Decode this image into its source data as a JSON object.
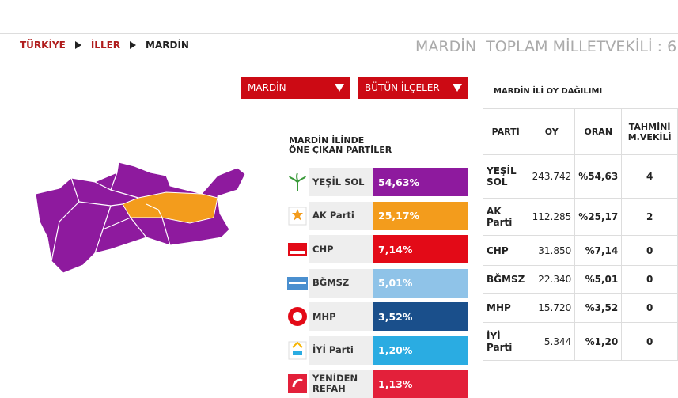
{
  "breadcrumb": [
    "TÜRKİYE",
    "İLLER",
    "MARDİN"
  ],
  "header": {
    "title": "MARDİN  TOPLAM MİLLETVEKİLİ : 6"
  },
  "dropdowns": [
    "MARDİN",
    "BÜTÜN İLÇELER"
  ],
  "parties_panel": {
    "title_lines": [
      "MARDİN İLİNDE",
      "ÖNE ÇIKAN PARTİLER"
    ],
    "parties": [
      {
        "name": "YEŞİL SOL",
        "percent": "54,63%",
        "color": "#8e1a9e"
      },
      {
        "name": "AK Parti",
        "percent": "25,17%",
        "color": "#f39c1c"
      },
      {
        "name": "CHP",
        "percent": "7,14%",
        "color": "#e30a17"
      },
      {
        "name": "BĞMSZ",
        "percent": "5,01%",
        "color": "#8fc3e8"
      },
      {
        "name": "MHP",
        "percent": "3,52%",
        "color": "#1a4f8b"
      },
      {
        "name": "İYİ Parti",
        "percent": "1,20%",
        "color": "#2aace2"
      },
      {
        "name": "YENİDEN REFAH",
        "percent": "1,13%",
        "color": "#e3203a"
      }
    ]
  },
  "table": {
    "title": "MARDİN İLİ OY DAĞILIMI",
    "columns": [
      "PARTİ",
      "OY",
      "ORAN",
      "TAHMİNİ M.VEKİLİ"
    ],
    "rows": [
      [
        "YEŞİL SOL",
        "243.742",
        "%54,63",
        "4"
      ],
      [
        "AK Parti",
        "112.285",
        "%25,17",
        "2"
      ],
      [
        "CHP",
        "31.850",
        "%7,14",
        "0"
      ],
      [
        "BĞMSZ",
        "22.340",
        "%5,01",
        "0"
      ],
      [
        "MHP",
        "15.720",
        "%3,52",
        "0"
      ],
      [
        "İYİ Parti",
        "5.344",
        "%1,20",
        "0"
      ]
    ]
  }
}
